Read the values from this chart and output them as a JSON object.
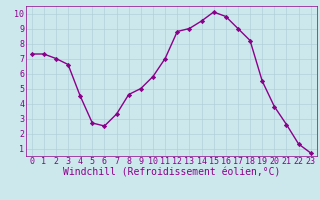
{
  "x": [
    0,
    1,
    2,
    3,
    4,
    5,
    6,
    7,
    8,
    9,
    10,
    11,
    12,
    13,
    14,
    15,
    16,
    17,
    18,
    19,
    20,
    21,
    22,
    23
  ],
  "y": [
    7.3,
    7.3,
    7.0,
    6.6,
    4.5,
    2.7,
    2.5,
    3.3,
    4.6,
    5.0,
    5.8,
    7.0,
    8.8,
    9.0,
    9.5,
    10.1,
    9.8,
    9.0,
    8.2,
    5.5,
    3.8,
    2.6,
    1.3,
    0.7
  ],
  "line_color": "#8b008b",
  "marker": "D",
  "marker_size": 2.2,
  "bg_color": "#cde8ed",
  "grid_color": "#b0d0d8",
  "xlabel": "Windchill (Refroidissement éolien,°C)",
  "xlabel_color": "#8b008b",
  "xlim": [
    -0.5,
    23.5
  ],
  "ylim": [
    0.5,
    10.5
  ],
  "yticks": [
    1,
    2,
    3,
    4,
    5,
    6,
    7,
    8,
    9,
    10
  ],
  "xticks": [
    0,
    1,
    2,
    3,
    4,
    5,
    6,
    7,
    8,
    9,
    10,
    11,
    12,
    13,
    14,
    15,
    16,
    17,
    18,
    19,
    20,
    21,
    22,
    23
  ],
  "tick_color": "#8b008b",
  "tick_fontsize": 6,
  "xlabel_fontsize": 7,
  "line_width": 1.0
}
